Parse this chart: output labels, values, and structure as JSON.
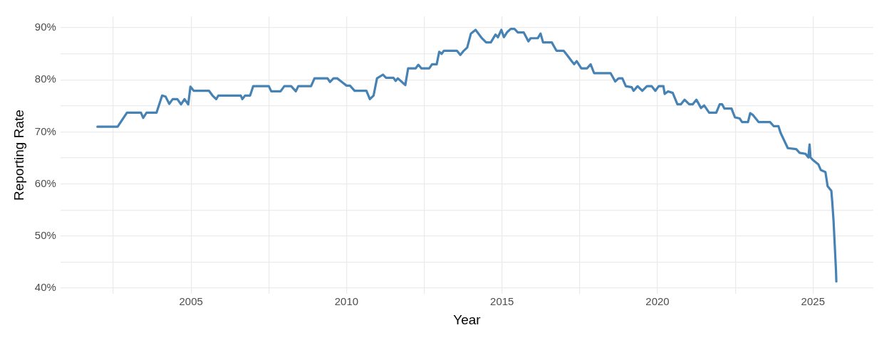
{
  "chart_data": {
    "type": "line",
    "xlabel": "Year",
    "ylabel": "Reporting Rate",
    "grid": true,
    "legend": false,
    "marker": "none",
    "line_style": "solid",
    "xlim": [
      2000.8,
      2026.94
    ],
    "ylim": [
      38.9,
      92.2
    ],
    "xticks": [
      {
        "value": 2002.5,
        "label": null
      },
      2005,
      {
        "value": 2007.5,
        "label": null
      },
      2010,
      {
        "value": 2012.5,
        "label": null
      },
      2015,
      {
        "value": 2017.5,
        "label": null
      },
      2020,
      {
        "value": 2022.5,
        "label": null
      },
      2025
    ],
    "yticks": [
      {
        "value": 40,
        "label": "40%"
      },
      {
        "value": 45,
        "label": null
      },
      {
        "value": 50,
        "label": "50%"
      },
      {
        "value": 55,
        "label": null
      },
      {
        "value": 60,
        "label": "60%"
      },
      {
        "value": 65,
        "label": null
      },
      {
        "value": 70,
        "label": "70%"
      },
      {
        "value": 75,
        "label": null
      },
      {
        "value": 80,
        "label": "80%"
      },
      {
        "value": 85,
        "label": null
      },
      {
        "value": 90,
        "label": "90%"
      }
    ],
    "series": [
      {
        "color": "#4682b4",
        "x": [
          2001.99,
          2002.64,
          2002.94,
          2003.39,
          2003.46,
          2003.57,
          2003.89,
          2004.07,
          2004.18,
          2004.3,
          2004.41,
          2004.56,
          2004.68,
          2004.79,
          2004.91,
          2004.98,
          2005.09,
          2005.58,
          2005.69,
          2005.81,
          2005.88,
          2006.6,
          2006.65,
          2006.74,
          2006.9,
          2007.0,
          2007.5,
          2007.58,
          2007.88,
          2008.0,
          2008.22,
          2008.37,
          2008.45,
          2008.86,
          2008.97,
          2009.39,
          2009.47,
          2009.58,
          2009.7,
          2009.85,
          2010.0,
          2010.11,
          2010.26,
          2010.64,
          2010.75,
          2010.87,
          2010.98,
          2011.17,
          2011.27,
          2011.51,
          2011.58,
          2011.65,
          2011.8,
          2011.89,
          2011.98,
          2012.22,
          2012.31,
          2012.41,
          2012.66,
          2012.75,
          2012.9,
          2012.98,
          2013.06,
          2013.13,
          2013.55,
          2013.66,
          2013.77,
          2013.88,
          2014.0,
          2014.15,
          2014.34,
          2014.49,
          2014.64,
          2014.79,
          2014.87,
          2014.98,
          2015.06,
          2015.17,
          2015.28,
          2015.4,
          2015.51,
          2015.7,
          2015.85,
          2015.92,
          2016.15,
          2016.24,
          2016.32,
          2016.6,
          2016.75,
          2016.98,
          2017.09,
          2017.24,
          2017.32,
          2017.4,
          2017.55,
          2017.73,
          2017.85,
          2017.96,
          2018.49,
          2018.64,
          2018.75,
          2018.87,
          2018.98,
          2019.17,
          2019.23,
          2019.36,
          2019.51,
          2019.66,
          2019.81,
          2019.93,
          2020.04,
          2020.19,
          2020.23,
          2020.34,
          2020.49,
          2020.64,
          2020.75,
          2020.87,
          2021.02,
          2021.13,
          2021.25,
          2021.4,
          2021.5,
          2021.66,
          2021.89,
          2022.0,
          2022.08,
          2022.15,
          2022.38,
          2022.49,
          2022.64,
          2022.72,
          2022.91,
          2022.98,
          2023.06,
          2023.25,
          2023.62,
          2023.74,
          2023.89,
          2023.96,
          2024.19,
          2024.46,
          2024.57,
          2024.76,
          2024.85,
          2024.89,
          2024.92,
          2025.02,
          2025.17,
          2025.25,
          2025.4,
          2025.47,
          2025.59,
          2025.62,
          2025.66,
          2025.7,
          2025.74,
          2025.75
        ],
        "values": [
          71.0,
          71.0,
          73.7,
          73.7,
          72.7,
          73.7,
          73.7,
          77.0,
          76.8,
          75.4,
          76.3,
          76.3,
          75.3,
          76.3,
          75.3,
          78.7,
          77.9,
          77.9,
          77.0,
          76.3,
          77.0,
          77.0,
          76.3,
          77.0,
          77.0,
          78.8,
          78.8,
          77.8,
          77.8,
          78.8,
          78.8,
          77.8,
          78.8,
          78.8,
          80.3,
          80.3,
          79.6,
          80.3,
          80.3,
          79.6,
          78.9,
          78.9,
          77.9,
          77.9,
          76.3,
          77.0,
          80.3,
          81.0,
          80.4,
          80.4,
          79.8,
          80.3,
          79.5,
          79.0,
          82.2,
          82.2,
          82.9,
          82.2,
          82.2,
          83.0,
          83.0,
          85.4,
          85.0,
          85.6,
          85.6,
          84.8,
          85.6,
          86.2,
          88.9,
          89.6,
          88.1,
          87.2,
          87.2,
          88.7,
          88.2,
          89.6,
          88.2,
          89.2,
          89.8,
          89.8,
          89.1,
          89.1,
          87.4,
          88.0,
          88.0,
          88.9,
          87.2,
          87.2,
          85.6,
          85.6,
          84.8,
          83.6,
          83.0,
          83.6,
          82.2,
          82.2,
          83.0,
          81.3,
          81.3,
          79.7,
          80.3,
          80.3,
          78.8,
          78.6,
          77.9,
          78.8,
          77.9,
          78.8,
          78.8,
          77.9,
          78.8,
          78.8,
          77.3,
          77.8,
          77.5,
          75.3,
          75.3,
          76.2,
          75.3,
          75.3,
          76.2,
          74.6,
          75.1,
          73.7,
          73.7,
          75.3,
          75.3,
          74.5,
          74.5,
          72.8,
          72.6,
          71.9,
          71.9,
          73.6,
          73.3,
          71.9,
          71.9,
          71.1,
          71.1,
          69.8,
          66.9,
          66.7,
          66.0,
          65.8,
          65.1,
          67.6,
          65.1,
          64.5,
          63.8,
          62.7,
          62.3,
          59.6,
          58.7,
          56.5,
          53.0,
          48.2,
          43.3,
          41.3
        ]
      }
    ]
  }
}
